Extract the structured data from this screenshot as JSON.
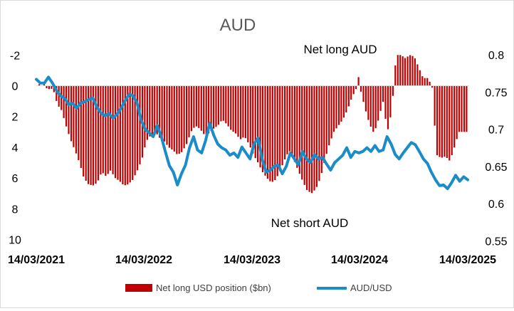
{
  "chart_data": {
    "type": "bar+line",
    "title": "AUD",
    "annotations": {
      "top": "Net long AUD",
      "bottom": "Net short AUD"
    },
    "left_axis": {
      "ylim": [
        -2,
        10
      ],
      "inverted": true,
      "ticks": [
        "-2",
        "0",
        "2",
        "4",
        "6",
        "8",
        "10"
      ]
    },
    "right_axis": {
      "ylim": [
        0.55,
        0.8
      ],
      "ticks": [
        "0.8",
        "0.75",
        "0.7",
        "0.65",
        "0.6",
        "0.55"
      ]
    },
    "x_ticks": [
      "14/03/2021",
      "14/03/2022",
      "14/03/2023",
      "14/03/2024",
      "14/03/2025"
    ],
    "x_range": [
      "2021-03-14",
      "2025-03-14"
    ],
    "grid": false,
    "legend_position": "bottom",
    "series": [
      {
        "name": "Net long USD position ($bn)",
        "type": "bar",
        "color": "#c00000",
        "anchors": [
          [
            0,
            -0.1
          ],
          [
            0.5,
            0
          ],
          [
            1,
            -0.2
          ],
          [
            1.5,
            0.1
          ],
          [
            2,
            0.3
          ],
          [
            2.5,
            0.1
          ],
          [
            3,
            0.3
          ],
          [
            3.5,
            0.5
          ],
          [
            4,
            1.2
          ],
          [
            5,
            1.6
          ],
          [
            6,
            2.6
          ],
          [
            7,
            3.5
          ],
          [
            8,
            4.2
          ],
          [
            9,
            5.0
          ],
          [
            10,
            6.0
          ],
          [
            11,
            6.4
          ],
          [
            12,
            6.5
          ],
          [
            13,
            6.3
          ],
          [
            14,
            5.6
          ],
          [
            15,
            5.9
          ],
          [
            16,
            5.5
          ],
          [
            17,
            6.0
          ],
          [
            18,
            6.2
          ],
          [
            19,
            6.5
          ],
          [
            20,
            6.4
          ],
          [
            21,
            6.1
          ],
          [
            22,
            5.5
          ],
          [
            23,
            4.8
          ],
          [
            24,
            3.6
          ],
          [
            25,
            3.2
          ],
          [
            26,
            3.0
          ],
          [
            27,
            3.4
          ],
          [
            28,
            3.6
          ],
          [
            29,
            4.0
          ],
          [
            30,
            4.2
          ],
          [
            31,
            4.5
          ],
          [
            32,
            4.3
          ],
          [
            33,
            3.8
          ],
          [
            34,
            3.0
          ],
          [
            35,
            2.6
          ],
          [
            36,
            2.8
          ],
          [
            37,
            3.2
          ],
          [
            38,
            3.1
          ],
          [
            39,
            2.8
          ],
          [
            40,
            2.6
          ],
          [
            41,
            2.2
          ],
          [
            42,
            2.5
          ],
          [
            43,
            2.9
          ],
          [
            44,
            3.1
          ],
          [
            45,
            3.5
          ],
          [
            46,
            3.3
          ],
          [
            47,
            3.8
          ],
          [
            48,
            4.5
          ],
          [
            49,
            5.0
          ],
          [
            50,
            5.6
          ],
          [
            51,
            6.0
          ],
          [
            52,
            6.3
          ],
          [
            53,
            6.1
          ],
          [
            54,
            5.5
          ],
          [
            55,
            4.8
          ],
          [
            56,
            4.2
          ],
          [
            57,
            4.8
          ],
          [
            58,
            5.5
          ],
          [
            59,
            6.2
          ],
          [
            60,
            6.8
          ],
          [
            61,
            7.0
          ],
          [
            62,
            6.7
          ],
          [
            63,
            6.0
          ],
          [
            64,
            4.8
          ],
          [
            65,
            3.8
          ],
          [
            66,
            3.0
          ],
          [
            67,
            2.6
          ],
          [
            68,
            2.2
          ],
          [
            69,
            1.6
          ],
          [
            70,
            0.8
          ],
          [
            71,
            0.2
          ],
          [
            71.5,
            -0.6
          ],
          [
            72,
            0.3
          ],
          [
            73,
            1.5
          ],
          [
            74,
            2.5
          ],
          [
            75,
            3.1
          ],
          [
            76,
            2.2
          ],
          [
            77,
            1.0
          ],
          [
            78,
            3.0
          ],
          [
            79,
            1.6
          ],
          [
            79.5,
            -0.5
          ],
          [
            80,
            -2.0
          ],
          [
            81,
            -2.0
          ],
          [
            82,
            -1.8
          ],
          [
            83,
            -2.0
          ],
          [
            84,
            -1.9
          ],
          [
            85,
            -1.2
          ],
          [
            86,
            -0.5
          ],
          [
            87,
            -0.5
          ],
          [
            88,
            0.0
          ],
          [
            89,
            4.5
          ],
          [
            90,
            4.7
          ],
          [
            91,
            4.6
          ],
          [
            92,
            4.9
          ],
          [
            93,
            4.0
          ],
          [
            94,
            3.0
          ],
          [
            95,
            3.0
          ],
          [
            96,
            3.0
          ]
        ]
      },
      {
        "name": "AUD/USD",
        "type": "line",
        "color": "#1a8cc7",
        "anchors": [
          [
            0,
            0.767
          ],
          [
            1,
            0.762
          ],
          [
            2,
            0.762
          ],
          [
            3,
            0.77
          ],
          [
            4,
            0.762
          ],
          [
            5,
            0.752
          ],
          [
            6,
            0.745
          ],
          [
            7,
            0.742
          ],
          [
            8,
            0.733
          ],
          [
            9,
            0.735
          ],
          [
            10,
            0.728
          ],
          [
            11,
            0.735
          ],
          [
            12,
            0.737
          ],
          [
            13,
            0.74
          ],
          [
            14,
            0.742
          ],
          [
            15,
            0.73
          ],
          [
            16,
            0.722
          ],
          [
            17,
            0.718
          ],
          [
            18,
            0.721
          ],
          [
            19,
            0.715
          ],
          [
            20,
            0.72
          ],
          [
            21,
            0.728
          ],
          [
            22,
            0.738
          ],
          [
            23,
            0.747
          ],
          [
            24,
            0.745
          ],
          [
            25,
            0.735
          ],
          [
            26,
            0.712
          ],
          [
            27,
            0.7
          ],
          [
            28,
            0.695
          ],
          [
            29,
            0.69
          ],
          [
            30,
            0.705
          ],
          [
            31,
            0.69
          ],
          [
            32,
            0.67
          ],
          [
            33,
            0.651
          ],
          [
            34,
            0.642
          ],
          [
            35,
            0.625
          ],
          [
            36,
            0.64
          ],
          [
            37,
            0.652
          ],
          [
            38,
            0.675
          ],
          [
            39,
            0.69
          ],
          [
            40,
            0.672
          ],
          [
            41,
            0.668
          ],
          [
            42,
            0.685
          ],
          [
            43,
            0.708
          ],
          [
            44,
            0.692
          ],
          [
            45,
            0.68
          ],
          [
            46,
            0.675
          ],
          [
            47,
            0.672
          ],
          [
            48,
            0.665
          ],
          [
            49,
            0.668
          ],
          [
            50,
            0.662
          ],
          [
            51,
            0.676
          ],
          [
            52,
            0.668
          ],
          [
            53,
            0.66
          ],
          [
            54,
            0.68
          ],
          [
            55,
            0.688
          ],
          [
            56,
            0.66
          ],
          [
            57,
            0.642
          ],
          [
            58,
            0.645
          ],
          [
            59,
            0.65
          ],
          [
            60,
            0.652
          ],
          [
            61,
            0.64
          ],
          [
            62,
            0.65
          ],
          [
            63,
            0.668
          ],
          [
            64,
            0.66
          ],
          [
            65,
            0.652
          ],
          [
            66,
            0.67
          ],
          [
            67,
            0.66
          ],
          [
            68,
            0.655
          ],
          [
            69,
            0.666
          ],
          [
            70,
            0.66
          ],
          [
            71,
            0.662
          ],
          [
            72,
            0.653
          ],
          [
            73,
            0.645
          ],
          [
            74,
            0.655
          ],
          [
            75,
            0.66
          ],
          [
            76,
            0.665
          ],
          [
            77,
            0.675
          ],
          [
            78,
            0.662
          ],
          [
            79,
            0.67
          ],
          [
            80,
            0.668
          ],
          [
            81,
            0.67
          ],
          [
            82,
            0.675
          ],
          [
            83,
            0.67
          ],
          [
            84,
            0.678
          ],
          [
            85,
            0.67
          ],
          [
            86,
            0.672
          ],
          [
            87,
            0.69
          ],
          [
            88,
            0.68
          ],
          [
            89,
            0.666
          ],
          [
            90,
            0.66
          ],
          [
            91,
            0.668
          ],
          [
            92,
            0.675
          ],
          [
            93,
            0.682
          ],
          [
            94,
            0.679
          ],
          [
            95,
            0.67
          ],
          [
            96,
            0.66
          ],
          [
            97,
            0.654
          ],
          [
            98,
            0.642
          ],
          [
            99,
            0.632
          ],
          [
            100,
            0.624
          ],
          [
            101,
            0.625
          ],
          [
            102,
            0.62
          ],
          [
            103,
            0.628
          ],
          [
            104,
            0.638
          ],
          [
            105,
            0.63
          ],
          [
            106,
            0.636
          ],
          [
            107,
            0.632
          ]
        ]
      }
    ]
  }
}
